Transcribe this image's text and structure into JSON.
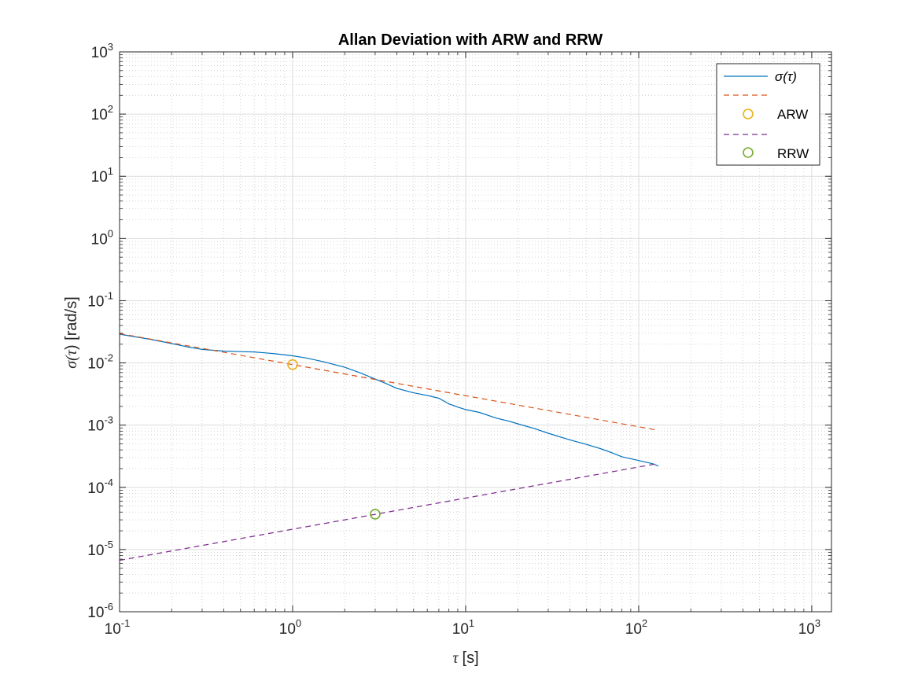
{
  "chart_data": {
    "type": "line",
    "title": "Allan Deviation with ARW and RRW",
    "xlabel": {
      "symbol": "τ",
      "unit": "[s]"
    },
    "ylabel": {
      "prefix": "σ(",
      "symbol": "τ",
      "suffix": ") [rad/s]"
    },
    "xscale": "log",
    "yscale": "log",
    "xlim": [
      0.1,
      1300
    ],
    "ylim": [
      1e-06,
      1000.0
    ],
    "grid": true,
    "minor_grid": true,
    "legend_position": "top-right",
    "x_ticks": [
      {
        "base": "10",
        "exp": "-1",
        "value": 0.1
      },
      {
        "base": "10",
        "exp": "0",
        "value": 1
      },
      {
        "base": "10",
        "exp": "1",
        "value": 10
      },
      {
        "base": "10",
        "exp": "2",
        "value": 100
      },
      {
        "base": "10",
        "exp": "3",
        "value": 1000
      }
    ],
    "y_ticks": [
      {
        "base": "10",
        "exp": "-6",
        "value": 1e-06
      },
      {
        "base": "10",
        "exp": "-5",
        "value": 1e-05
      },
      {
        "base": "10",
        "exp": "-4",
        "value": 0.0001
      },
      {
        "base": "10",
        "exp": "-3",
        "value": 0.001
      },
      {
        "base": "10",
        "exp": "-2",
        "value": 0.01
      },
      {
        "base": "10",
        "exp": "-1",
        "value": 0.1
      },
      {
        "base": "10",
        "exp": "0",
        "value": 1
      },
      {
        "base": "10",
        "exp": "1",
        "value": 10
      },
      {
        "base": "10",
        "exp": "2",
        "value": 100
      },
      {
        "base": "10",
        "exp": "3",
        "value": 1000
      }
    ],
    "series": [
      {
        "name": "σ(τ)",
        "legend_label": "σ(τ)",
        "style": "solid",
        "color": "#0072BD",
        "x": [
          0.1,
          0.15,
          0.2,
          0.25,
          0.3,
          0.4,
          0.5,
          0.6,
          0.7,
          0.8,
          1.0,
          1.2,
          1.5,
          2.0,
          2.5,
          3.0,
          3.5,
          4.0,
          5.0,
          6.0,
          7.0,
          8.0,
          9.0,
          10,
          12,
          15,
          18,
          20,
          25,
          30,
          40,
          50,
          60,
          70,
          80,
          100,
          120,
          130
        ],
        "y": [
          0.029,
          0.024,
          0.0205,
          0.018,
          0.0165,
          0.0155,
          0.0152,
          0.015,
          0.0145,
          0.014,
          0.013,
          0.012,
          0.0105,
          0.0085,
          0.0068,
          0.0055,
          0.0046,
          0.0039,
          0.0033,
          0.003,
          0.0027,
          0.0022,
          0.00195,
          0.00178,
          0.0016,
          0.0013,
          0.00115,
          0.00105,
          0.00088,
          0.00074,
          0.00058,
          0.00049,
          0.00042,
          0.00036,
          0.00031,
          0.00027,
          0.00024,
          0.00022
        ]
      },
      {
        "name": "ARW fit",
        "legend_label": "",
        "style": "dashed",
        "color": "#D95319",
        "x": [
          0.1,
          130
        ],
        "y": [
          0.0297,
          0.000824
        ]
      },
      {
        "name": "ARW",
        "legend_label": "ARW",
        "style": "marker",
        "color": "#EDB120",
        "x": [
          1
        ],
        "y": [
          0.0094
        ]
      },
      {
        "name": "RRW fit",
        "legend_label": "",
        "style": "dashed",
        "color": "#7E2F8E",
        "x": [
          0.1,
          130
        ],
        "y": [
          6.7e-06,
          0.000242
        ]
      },
      {
        "name": "RRW",
        "legend_label": "RRW",
        "style": "marker",
        "color": "#77AC30",
        "x": [
          3
        ],
        "y": [
          3.7e-05
        ]
      }
    ]
  }
}
